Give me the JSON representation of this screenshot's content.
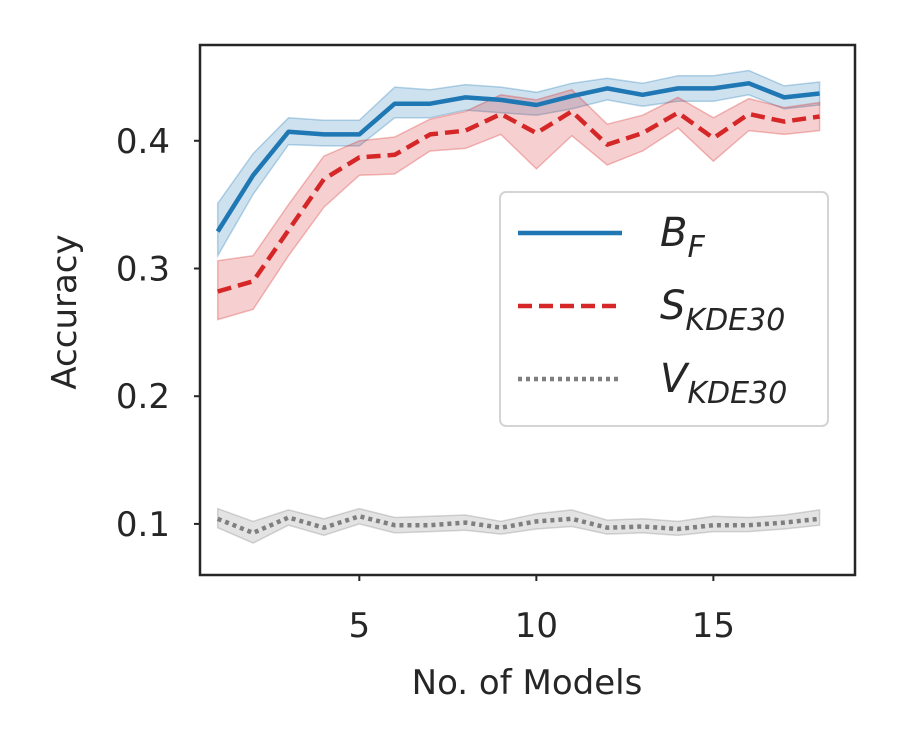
{
  "chart_data": {
    "type": "line",
    "xlabel": "No. of Models",
    "ylabel": "Accuracy",
    "xlim": [
      0.5,
      19.0
    ],
    "ylim": [
      0.06,
      0.475
    ],
    "x_ticks": [
      5,
      10,
      15
    ],
    "y_ticks": [
      0.1,
      0.2,
      0.3,
      0.4
    ],
    "x_tick_labels": [
      "5",
      "10",
      "15"
    ],
    "y_tick_labels": [
      "0.1",
      "0.2",
      "0.3",
      "0.4"
    ],
    "grid": false,
    "legend_position": "center-right",
    "x": [
      1,
      2,
      3,
      4,
      5,
      6,
      7,
      8,
      9,
      10,
      11,
      12,
      13,
      14,
      15,
      16,
      17,
      18
    ],
    "series": [
      {
        "name": "B",
        "name_sub": "F",
        "color": "#1f77b4",
        "style": "solid",
        "values": [
          0.329,
          0.373,
          0.407,
          0.405,
          0.405,
          0.429,
          0.429,
          0.434,
          0.432,
          0.428,
          0.435,
          0.441,
          0.436,
          0.441,
          0.441,
          0.445,
          0.434,
          0.437
        ],
        "lower": [
          0.31,
          0.358,
          0.397,
          0.396,
          0.396,
          0.418,
          0.418,
          0.424,
          0.422,
          0.42,
          0.425,
          0.432,
          0.427,
          0.431,
          0.431,
          0.436,
          0.425,
          0.428
        ],
        "upper": [
          0.351,
          0.39,
          0.418,
          0.416,
          0.416,
          0.442,
          0.44,
          0.444,
          0.442,
          0.438,
          0.445,
          0.449,
          0.445,
          0.451,
          0.451,
          0.455,
          0.443,
          0.446
        ]
      },
      {
        "name": "S",
        "name_sub": "KDE30",
        "color": "#d62728",
        "style": "dashed",
        "values": [
          0.282,
          0.29,
          0.33,
          0.37,
          0.387,
          0.389,
          0.405,
          0.408,
          0.421,
          0.406,
          0.423,
          0.397,
          0.406,
          0.422,
          0.402,
          0.421,
          0.415,
          0.419
        ],
        "lower": [
          0.26,
          0.268,
          0.31,
          0.348,
          0.373,
          0.374,
          0.392,
          0.394,
          0.405,
          0.378,
          0.404,
          0.381,
          0.392,
          0.41,
          0.384,
          0.408,
          0.405,
          0.408
        ],
        "upper": [
          0.306,
          0.31,
          0.35,
          0.388,
          0.4,
          0.403,
          0.417,
          0.423,
          0.436,
          0.432,
          0.44,
          0.413,
          0.42,
          0.434,
          0.418,
          0.433,
          0.426,
          0.43
        ]
      },
      {
        "name": "V",
        "name_sub": "KDE30",
        "color": "#7f7f7f",
        "style": "dotted",
        "values": [
          0.104,
          0.093,
          0.105,
          0.097,
          0.106,
          0.099,
          0.099,
          0.101,
          0.097,
          0.102,
          0.104,
          0.097,
          0.098,
          0.096,
          0.099,
          0.099,
          0.101,
          0.104
        ],
        "lower": [
          0.097,
          0.085,
          0.099,
          0.091,
          0.1,
          0.093,
          0.094,
          0.095,
          0.092,
          0.096,
          0.098,
          0.092,
          0.093,
          0.091,
          0.094,
          0.094,
          0.096,
          0.099
        ],
        "upper": [
          0.112,
          0.102,
          0.111,
          0.104,
          0.112,
          0.105,
          0.106,
          0.107,
          0.102,
          0.108,
          0.111,
          0.103,
          0.104,
          0.102,
          0.106,
          0.105,
          0.107,
          0.111
        ]
      }
    ]
  }
}
